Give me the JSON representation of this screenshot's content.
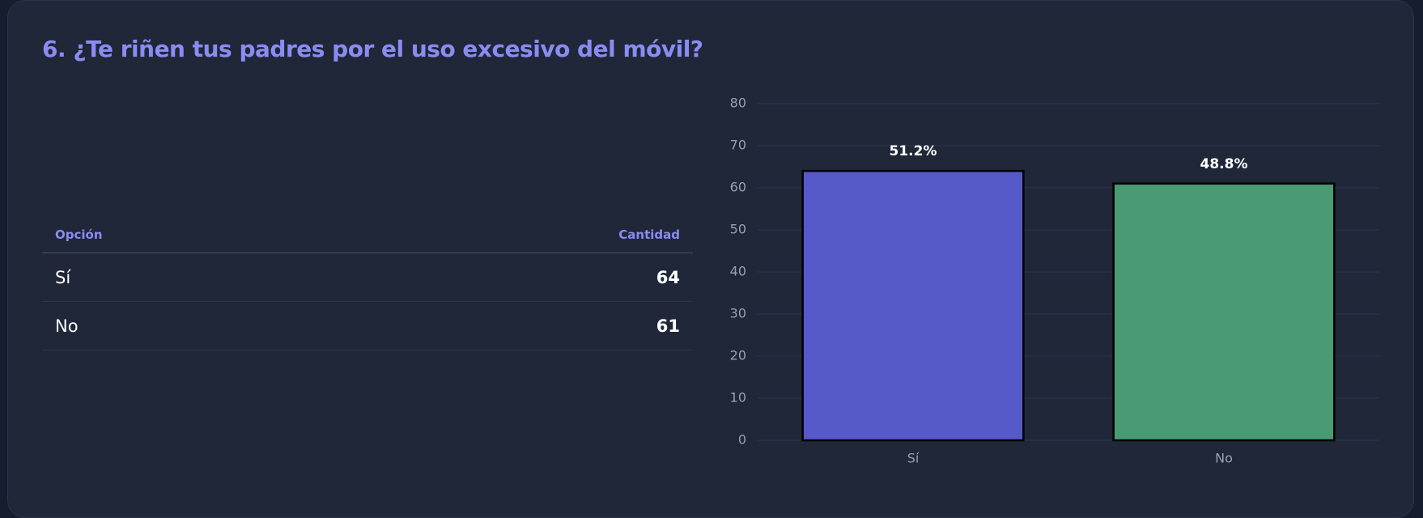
{
  "header": {
    "title": "6. ¿Te riñen tus padres por el uso excesivo del móvil?"
  },
  "table": {
    "headers": [
      "Opción",
      "Cantidad"
    ],
    "rows": [
      [
        "Sí",
        64
      ],
      [
        "No",
        61
      ]
    ]
  },
  "chart_data": {
    "type": "bar",
    "categories": [
      "Sí",
      "No"
    ],
    "values": [
      64,
      61
    ],
    "percent_labels": [
      "51.2%",
      "48.8%"
    ],
    "colors": [
      "#5659c9",
      "#4a9a74"
    ],
    "ylim": [
      0,
      80
    ],
    "yticks": [
      0,
      10,
      20,
      30,
      40,
      50,
      60,
      70,
      80
    ],
    "grid": true
  }
}
